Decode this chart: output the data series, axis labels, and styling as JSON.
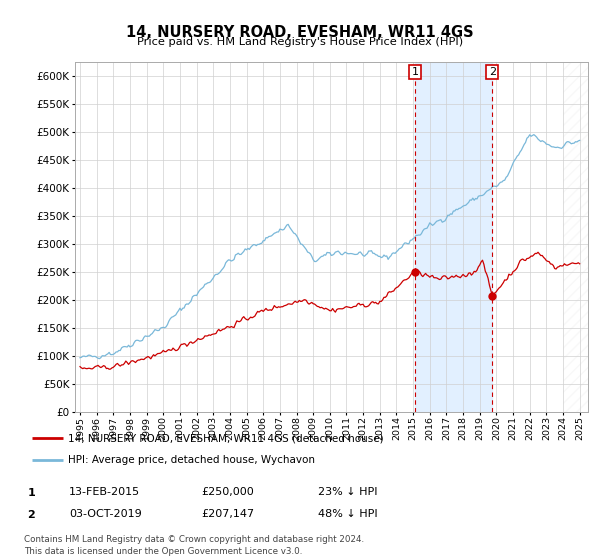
{
  "title": "14, NURSERY ROAD, EVESHAM, WR11 4GS",
  "subtitle": "Price paid vs. HM Land Registry's House Price Index (HPI)",
  "ylim": [
    0,
    625000
  ],
  "yticks": [
    0,
    50000,
    100000,
    150000,
    200000,
    250000,
    300000,
    350000,
    400000,
    450000,
    500000,
    550000,
    600000
  ],
  "ytick_labels": [
    "£0",
    "£50K",
    "£100K",
    "£150K",
    "£200K",
    "£250K",
    "£300K",
    "£350K",
    "£400K",
    "£450K",
    "£500K",
    "£550K",
    "£600K"
  ],
  "background_color": "#ffffff",
  "plot_background": "#ffffff",
  "hpi_color": "#7ab8d9",
  "property_color": "#cc0000",
  "transaction1_date": 2015.12,
  "transaction1_price": 250000,
  "transaction2_date": 2019.75,
  "transaction2_price": 207147,
  "shade_color": "#ddeeff",
  "dashed_color": "#cc0000",
  "legend_property": "14, NURSERY ROAD, EVESHAM, WR11 4GS (detached house)",
  "legend_hpi": "HPI: Average price, detached house, Wychavon",
  "table_row1": [
    "1",
    "13-FEB-2015",
    "£250,000",
    "23% ↓ HPI"
  ],
  "table_row2": [
    "2",
    "03-OCT-2019",
    "£207,147",
    "48% ↓ HPI"
  ],
  "footer": "Contains HM Land Registry data © Crown copyright and database right 2024.\nThis data is licensed under the Open Government Licence v3.0.",
  "xmin": 1994.7,
  "xmax": 2025.5,
  "hatch_start": 2024.0,
  "noise_seed": 42
}
